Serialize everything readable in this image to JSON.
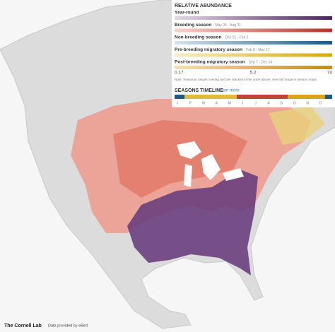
{
  "legend": {
    "title": "RELATIVE ABUNDANCE",
    "seasons": [
      {
        "name": "Year-round"
      },
      {
        "name": "Breeding season",
        "dates": "May 24 - Aug 31"
      },
      {
        "name": "Non-breeding season",
        "dates": "Dec 21 - Feb 1"
      },
      {
        "name": "Pre-breeding migratory season",
        "dates": "Feb 8 - May 17"
      },
      {
        "name": "Post-breeding migratory season",
        "dates": "Sep 7 - Dec 14"
      }
    ],
    "scale_labels": [
      0.17,
      5.2,
      74
    ],
    "note": "Note: Seasonal ranges overlap and are stacked in the order above: view full range in season maps."
  },
  "timeline": {
    "title": "SEASONS TIMELINE",
    "link": "Learn more",
    "months": [
      "J",
      "F",
      "M",
      "A",
      "M",
      "J",
      "J",
      "A",
      "S",
      "O",
      "N",
      "D"
    ]
  },
  "footer": {
    "logo": "The Cornell Lab",
    "credit": "Data provided by eBird"
  }
}
